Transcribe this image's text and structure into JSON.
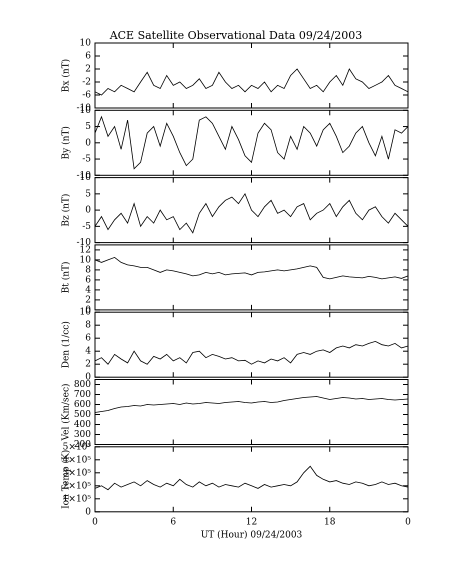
{
  "chart_data": [
    {
      "type": "line",
      "title": "ACE Satellite Observational Data   09/24/2003",
      "ylabel": "Bx (nT)",
      "xlim": [
        0,
        24
      ],
      "ylim": [
        -10,
        10
      ],
      "yticks": [
        -10,
        -6,
        -2,
        2,
        6,
        10
      ],
      "x": [
        0,
        0.5,
        1,
        1.5,
        2,
        2.5,
        3,
        3.5,
        4,
        4.5,
        5,
        5.5,
        6,
        6.5,
        7,
        7.5,
        8,
        8.5,
        9,
        9.5,
        10,
        10.5,
        11,
        11.5,
        12,
        12.5,
        13,
        13.5,
        14,
        14.5,
        15,
        15.5,
        16,
        16.5,
        17,
        17.5,
        18,
        18.5,
        19,
        19.5,
        20,
        20.5,
        21,
        21.5,
        22,
        22.5,
        23,
        23.5,
        24
      ],
      "values": [
        -5,
        -6,
        -4,
        -5,
        -3,
        -4,
        -5,
        -2,
        1,
        -3,
        -4,
        0,
        -3,
        -2,
        -4,
        -3,
        -1,
        -4,
        -3,
        1,
        -2,
        -4,
        -3,
        -5,
        -3,
        -4,
        -2,
        -5,
        -3,
        -4,
        0,
        2,
        -1,
        -4,
        -3,
        -5,
        -2,
        0,
        -3,
        2,
        -1,
        -2,
        -4,
        -3,
        -2,
        0,
        -3,
        -4,
        -5
      ],
      "color": "#000000"
    },
    {
      "type": "line",
      "ylabel": "By (nT)",
      "xlim": [
        0,
        24
      ],
      "ylim": [
        -10,
        10
      ],
      "yticks": [
        -10,
        -5,
        0,
        5,
        10
      ],
      "x": [
        0,
        0.5,
        1,
        1.5,
        2,
        2.5,
        3,
        3.5,
        4,
        4.5,
        5,
        5.5,
        6,
        6.5,
        7,
        7.5,
        8,
        8.5,
        9,
        9.5,
        10,
        10.5,
        11,
        11.5,
        12,
        12.5,
        13,
        13.5,
        14,
        14.5,
        15,
        15.5,
        16,
        16.5,
        17,
        17.5,
        18,
        18.5,
        19,
        19.5,
        20,
        20.5,
        21,
        21.5,
        22,
        22.5,
        23,
        23.5,
        24
      ],
      "values": [
        3,
        8,
        2,
        5,
        -2,
        7,
        -8,
        -6,
        3,
        5,
        -1,
        6,
        2,
        -3,
        -7,
        -5,
        7,
        8,
        6,
        2,
        -2,
        5,
        1,
        -4,
        -6,
        3,
        6,
        4,
        -3,
        -5,
        2,
        -2,
        5,
        3,
        -1,
        4,
        6,
        2,
        -3,
        -1,
        3,
        5,
        0,
        -4,
        2,
        -5,
        4,
        3,
        5
      ],
      "color": "#000000"
    },
    {
      "type": "line",
      "ylabel": "Bz (nT)",
      "xlim": [
        0,
        24
      ],
      "ylim": [
        -10,
        10
      ],
      "yticks": [
        -10,
        -5,
        0,
        5,
        10
      ],
      "x": [
        0,
        0.5,
        1,
        1.5,
        2,
        2.5,
        3,
        3.5,
        4,
        4.5,
        5,
        5.5,
        6,
        6.5,
        7,
        7.5,
        8,
        8.5,
        9,
        9.5,
        10,
        10.5,
        11,
        11.5,
        12,
        12.5,
        13,
        13.5,
        14,
        14.5,
        15,
        15.5,
        16,
        16.5,
        17,
        17.5,
        18,
        18.5,
        19,
        19.5,
        20,
        20.5,
        21,
        21.5,
        22,
        22.5,
        23,
        23.5,
        24
      ],
      "values": [
        -5,
        -2,
        -6,
        -3,
        -1,
        -4,
        2,
        -5,
        -2,
        -4,
        0,
        -3,
        -2,
        -6,
        -4,
        -7,
        -1,
        2,
        -2,
        1,
        3,
        4,
        2,
        5,
        0,
        -2,
        1,
        3,
        -1,
        0,
        -2,
        1,
        2,
        -3,
        -1,
        0,
        2,
        -2,
        1,
        3,
        -1,
        -3,
        0,
        1,
        -2,
        -4,
        -1,
        -3,
        -5
      ],
      "color": "#000000"
    },
    {
      "type": "line",
      "ylabel": "Bt (nT)",
      "xlim": [
        0,
        24
      ],
      "ylim": [
        0,
        13
      ],
      "yticks": [
        0,
        2,
        4,
        6,
        8,
        10,
        12
      ],
      "x": [
        0,
        0.5,
        1,
        1.5,
        2,
        2.5,
        3,
        3.5,
        4,
        4.5,
        5,
        5.5,
        6,
        6.5,
        7,
        7.5,
        8,
        8.5,
        9,
        9.5,
        10,
        10.5,
        11,
        11.5,
        12,
        12.5,
        13,
        13.5,
        14,
        14.5,
        15,
        15.5,
        16,
        16.5,
        17,
        17.5,
        18,
        18.5,
        19,
        19.5,
        20,
        20.5,
        21,
        21.5,
        22,
        22.5,
        23,
        23.5,
        24
      ],
      "values": [
        10,
        9.5,
        10,
        10.5,
        9.5,
        9,
        8.8,
        8.5,
        8.5,
        8,
        7.5,
        8,
        7.8,
        7.5,
        7.2,
        6.8,
        7,
        7.5,
        7.2,
        7.5,
        7,
        7.2,
        7.3,
        7.4,
        7,
        7.5,
        7.6,
        7.8,
        8,
        7.8,
        8,
        8.2,
        8.5,
        8.8,
        8.5,
        6.5,
        6.2,
        6.5,
        6.8,
        6.6,
        6.5,
        6.4,
        6.7,
        6.5,
        6.2,
        6.4,
        6.6,
        6.3,
        6.8
      ],
      "color": "#000000"
    },
    {
      "type": "line",
      "ylabel": "Den (1/cc)",
      "xlim": [
        0,
        24
      ],
      "ylim": [
        0,
        10
      ],
      "yticks": [
        0,
        2,
        4,
        6,
        8,
        10
      ],
      "x": [
        0,
        0.5,
        1,
        1.5,
        2,
        2.5,
        3,
        3.5,
        4,
        4.5,
        5,
        5.5,
        6,
        6.5,
        7,
        7.5,
        8,
        8.5,
        9,
        9.5,
        10,
        10.5,
        11,
        11.5,
        12,
        12.5,
        13,
        13.5,
        14,
        14.5,
        15,
        15.5,
        16,
        16.5,
        17,
        17.5,
        18,
        18.5,
        19,
        19.5,
        20,
        20.5,
        21,
        21.5,
        22,
        22.5,
        23,
        23.5,
        24
      ],
      "values": [
        2.5,
        3,
        2,
        3.5,
        2.8,
        2.2,
        4,
        2.5,
        2,
        3.2,
        2.8,
        3.5,
        2.5,
        3,
        2.2,
        3.8,
        4,
        3,
        3.5,
        3.2,
        2.8,
        3,
        2.5,
        2.6,
        2,
        2.5,
        2.2,
        2.8,
        2.5,
        3,
        2.2,
        3.5,
        3.8,
        3.5,
        4,
        4.2,
        3.8,
        4.5,
        4.8,
        4.5,
        5,
        4.8,
        5.2,
        5.5,
        5,
        4.8,
        5.2,
        4.5,
        4.8
      ],
      "color": "#000000"
    },
    {
      "type": "line",
      "ylabel": "Vel (Km/sec)",
      "xlim": [
        0,
        24
      ],
      "ylim": [
        200,
        850
      ],
      "yticks": [
        200,
        300,
        400,
        500,
        600,
        700,
        800
      ],
      "x": [
        0,
        0.5,
        1,
        1.5,
        2,
        2.5,
        3,
        3.5,
        4,
        4.5,
        5,
        5.5,
        6,
        6.5,
        7,
        7.5,
        8,
        8.5,
        9,
        9.5,
        10,
        10.5,
        11,
        11.5,
        12,
        12.5,
        13,
        13.5,
        14,
        14.5,
        15,
        15.5,
        16,
        16.5,
        17,
        17.5,
        18,
        18.5,
        19,
        19.5,
        20,
        20.5,
        21,
        21.5,
        22,
        22.5,
        23,
        23.5,
        24
      ],
      "values": [
        520,
        530,
        540,
        560,
        575,
        580,
        590,
        585,
        600,
        595,
        600,
        605,
        610,
        600,
        615,
        605,
        610,
        620,
        615,
        610,
        620,
        625,
        630,
        620,
        615,
        625,
        630,
        620,
        625,
        640,
        650,
        660,
        670,
        675,
        680,
        665,
        650,
        660,
        670,
        665,
        655,
        660,
        650,
        655,
        660,
        650,
        645,
        650,
        655
      ],
      "color": "#000000"
    },
    {
      "type": "line",
      "ylabel": "Ion Temp (K)",
      "xlabel": "UT (Hour)   09/24/2003",
      "xlim": [
        0,
        24
      ],
      "ylim": [
        0,
        500000
      ],
      "yticks": [
        0,
        {
          "value": 100000,
          "label": "1×10⁵"
        },
        {
          "value": 200000,
          "label": "2×10⁵"
        },
        {
          "value": 300000,
          "label": "3×10⁵"
        },
        {
          "value": 400000,
          "label": "4×10⁵"
        },
        {
          "value": 500000,
          "label": "5×10⁵"
        }
      ],
      "xticks": [
        0,
        6,
        12,
        18,
        {
          "value": 24,
          "label": "0"
        }
      ],
      "x": [
        0,
        0.5,
        1,
        1.5,
        2,
        2.5,
        3,
        3.5,
        4,
        4.5,
        5,
        5.5,
        6,
        6.5,
        7,
        7.5,
        8,
        8.5,
        9,
        9.5,
        10,
        10.5,
        11,
        11.5,
        12,
        12.5,
        13,
        13.5,
        14,
        14.5,
        15,
        15.5,
        16,
        16.5,
        17,
        17.5,
        18,
        18.5,
        19,
        19.5,
        20,
        20.5,
        21,
        21.5,
        22,
        22.5,
        23,
        23.5,
        24
      ],
      "values": [
        180000,
        200000,
        170000,
        220000,
        190000,
        210000,
        230000,
        200000,
        240000,
        210000,
        190000,
        220000,
        200000,
        250000,
        210000,
        190000,
        230000,
        200000,
        220000,
        190000,
        210000,
        200000,
        190000,
        220000,
        200000,
        180000,
        210000,
        190000,
        200000,
        210000,
        200000,
        230000,
        300000,
        350000,
        280000,
        250000,
        230000,
        240000,
        220000,
        210000,
        230000,
        220000,
        200000,
        210000,
        230000,
        210000,
        220000,
        200000,
        190000
      ],
      "color": "#000000"
    }
  ]
}
